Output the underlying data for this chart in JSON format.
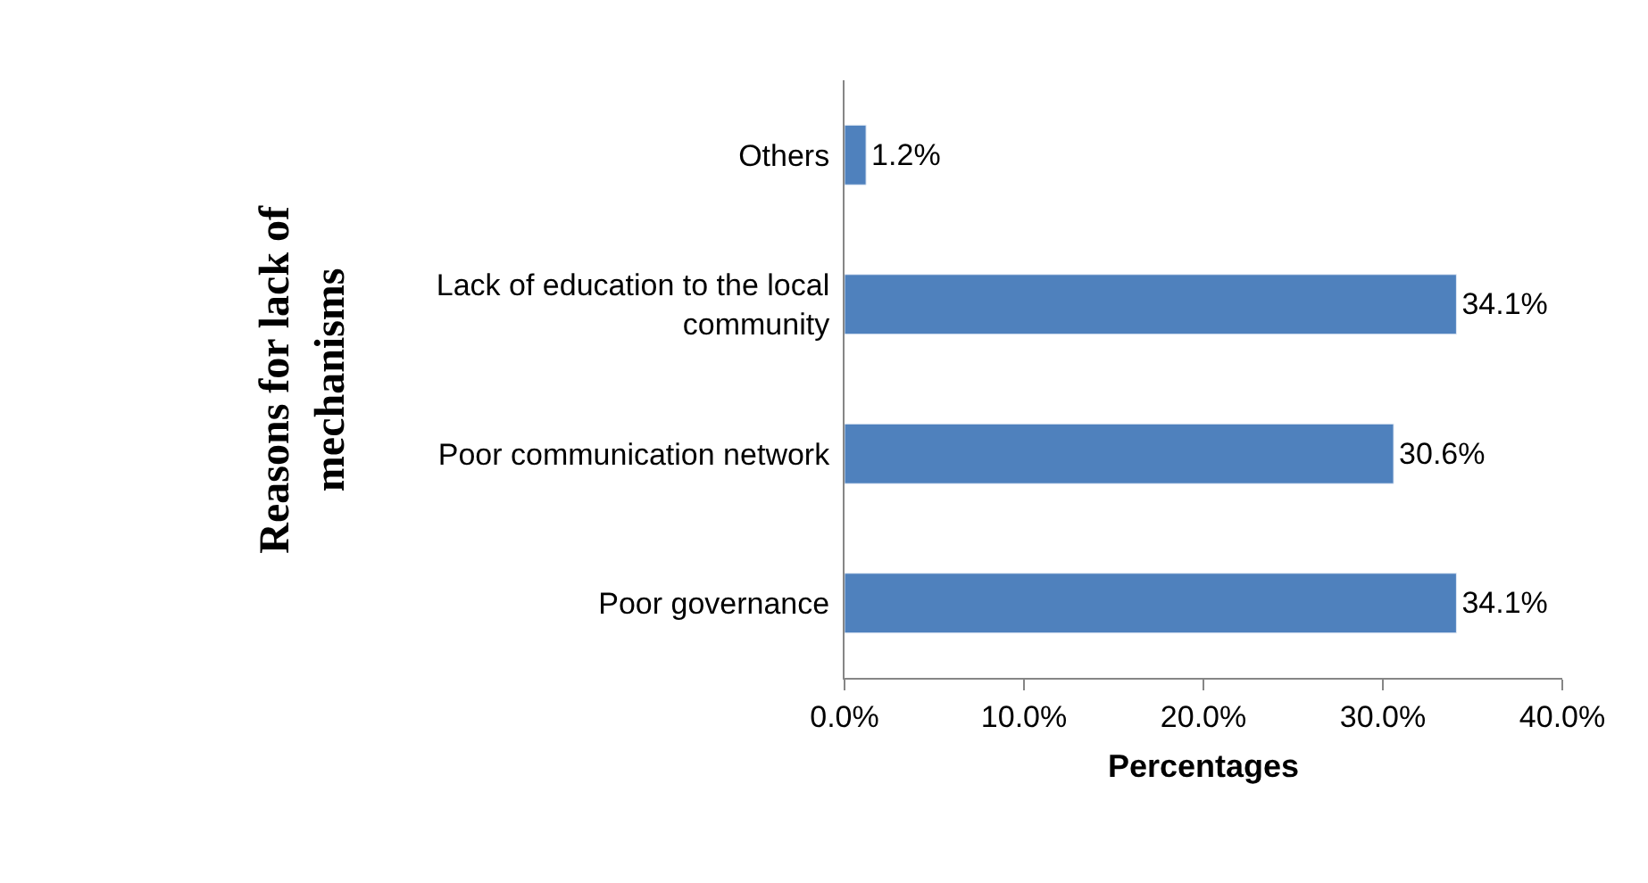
{
  "chart_data": {
    "type": "bar",
    "orientation": "horizontal",
    "ylabel": "Reasons for lack of mechanisms",
    "xlabel": "Percentages",
    "categories": [
      "Others",
      "Lack of education to the local community",
      "Poor communication network",
      "Poor governance"
    ],
    "values": [
      1.2,
      34.1,
      30.6,
      34.1
    ],
    "value_labels": [
      "1.2%",
      "34.1%",
      "30.6%",
      "34.1%"
    ],
    "color": "#4f81bd",
    "xlim": [
      0,
      40
    ],
    "xticks": [
      {
        "value": 0,
        "label": "0.0%"
      },
      {
        "value": 10,
        "label": "10.0%"
      },
      {
        "value": 20,
        "label": "20.0%"
      },
      {
        "value": 30,
        "label": "30.0%"
      },
      {
        "value": 40,
        "label": "40.0%"
      }
    ]
  }
}
